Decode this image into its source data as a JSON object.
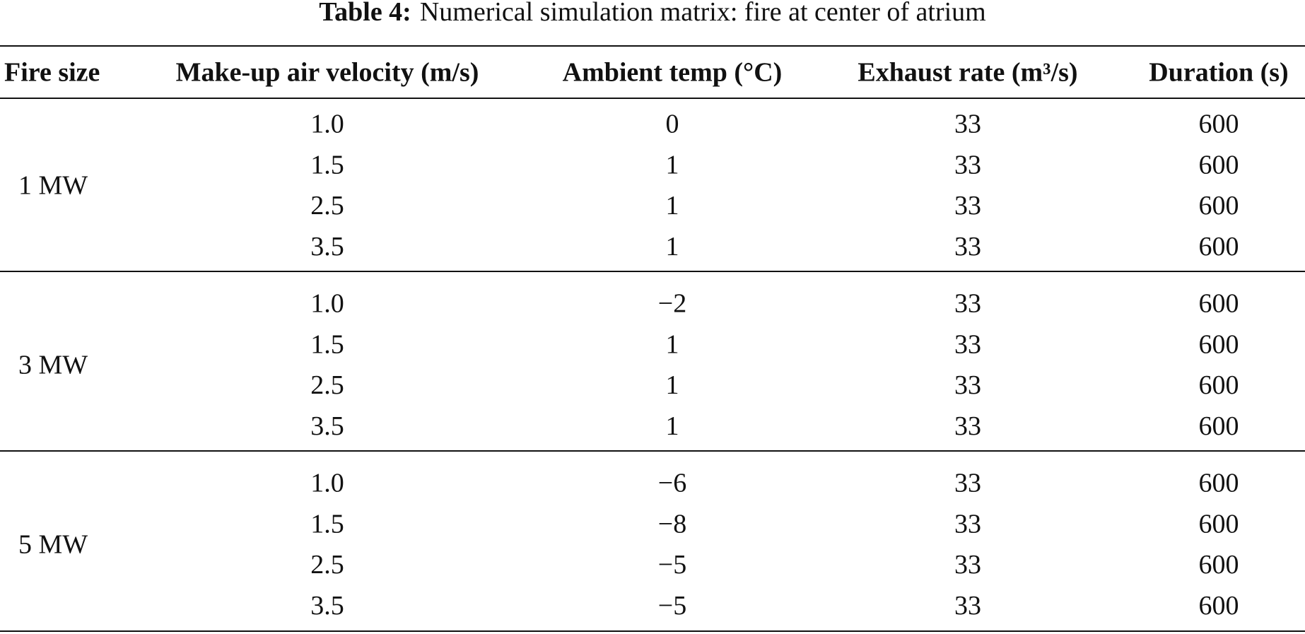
{
  "table": {
    "caption_label": "Table 4:",
    "caption_text": "Numerical simulation matrix: fire at center of atrium",
    "headers": [
      "Fire size",
      "Make-up air velocity (m/s)",
      "Ambient temp (°C)",
      "Exhaust rate (m³/s)",
      "Duration (s)"
    ],
    "groups": [
      {
        "fire_size": "1 MW",
        "rows": [
          [
            "1.0",
            "0",
            "33",
            "600"
          ],
          [
            "1.5",
            "1",
            "33",
            "600"
          ],
          [
            "2.5",
            "1",
            "33",
            "600"
          ],
          [
            "3.5",
            "1",
            "33",
            "600"
          ]
        ]
      },
      {
        "fire_size": "3 MW",
        "rows": [
          [
            "1.0",
            "−2",
            "33",
            "600"
          ],
          [
            "1.5",
            "1",
            "33",
            "600"
          ],
          [
            "2.5",
            "1",
            "33",
            "600"
          ],
          [
            "3.5",
            "1",
            "33",
            "600"
          ]
        ]
      },
      {
        "fire_size": "5 MW",
        "rows": [
          [
            "1.0",
            "−6",
            "33",
            "600"
          ],
          [
            "1.5",
            "−8",
            "33",
            "600"
          ],
          [
            "2.5",
            "−5",
            "33",
            "600"
          ],
          [
            "3.5",
            "−5",
            "33",
            "600"
          ]
        ]
      }
    ]
  }
}
